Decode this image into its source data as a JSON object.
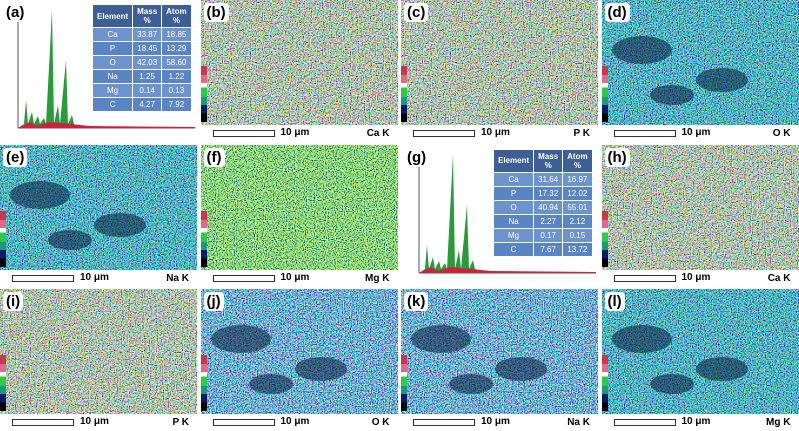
{
  "panels": [
    {
      "type": "spectrum",
      "label": "(a)",
      "table": {
        "header": [
          "Element",
          "Mass",
          "Atom"
        ],
        "units": [
          "%",
          "%"
        ],
        "rows": [
          [
            "Ca",
            "33.87",
            "18.85"
          ],
          [
            "P",
            "18.45",
            "13.29"
          ],
          [
            "O",
            "42.03",
            "58.60"
          ],
          [
            "Na",
            "1.25",
            "1.22"
          ],
          [
            "Mg",
            "0.14",
            "0.13"
          ],
          [
            "C",
            "4.27",
            "7.92"
          ]
        ]
      }
    },
    {
      "type": "map",
      "label": "(b)",
      "scale": "10 μm",
      "element": "Ca K"
    },
    {
      "type": "map",
      "label": "(c)",
      "scale": "10 μm",
      "element": "P K"
    },
    {
      "type": "map",
      "label": "(d)",
      "scale": "10 μm",
      "element": "O K"
    },
    {
      "type": "map",
      "label": "(e)",
      "scale": "10 μm",
      "element": "Na K"
    },
    {
      "type": "map",
      "label": "(f)",
      "scale": "10 μm",
      "element": "Mg K"
    },
    {
      "type": "spectrum",
      "label": "(g)",
      "table": {
        "header": [
          "Element",
          "Mass",
          "Atom"
        ],
        "units": [
          "%",
          "%"
        ],
        "rows": [
          [
            "Ca",
            "31.64",
            "16.97"
          ],
          [
            "P",
            "17.32",
            "12.02"
          ],
          [
            "O",
            "40.94",
            "55.01"
          ],
          [
            "Na",
            "2.27",
            "2.12"
          ],
          [
            "Mg",
            "0.17",
            "0.15"
          ],
          [
            "C",
            "7.67",
            "13.72"
          ]
        ]
      }
    },
    {
      "type": "map",
      "label": "(h)",
      "scale": "10 μm",
      "element": "Ca K"
    },
    {
      "type": "map",
      "label": "(i)",
      "scale": "10 μm",
      "element": "P K"
    },
    {
      "type": "map",
      "label": "(j)",
      "scale": "10 μm",
      "element": "O K"
    },
    {
      "type": "map",
      "label": "(k)",
      "scale": "10 μm",
      "element": "Na K"
    },
    {
      "type": "map",
      "label": "(l)",
      "scale": "10 μm",
      "element": "Mg K"
    }
  ]
}
